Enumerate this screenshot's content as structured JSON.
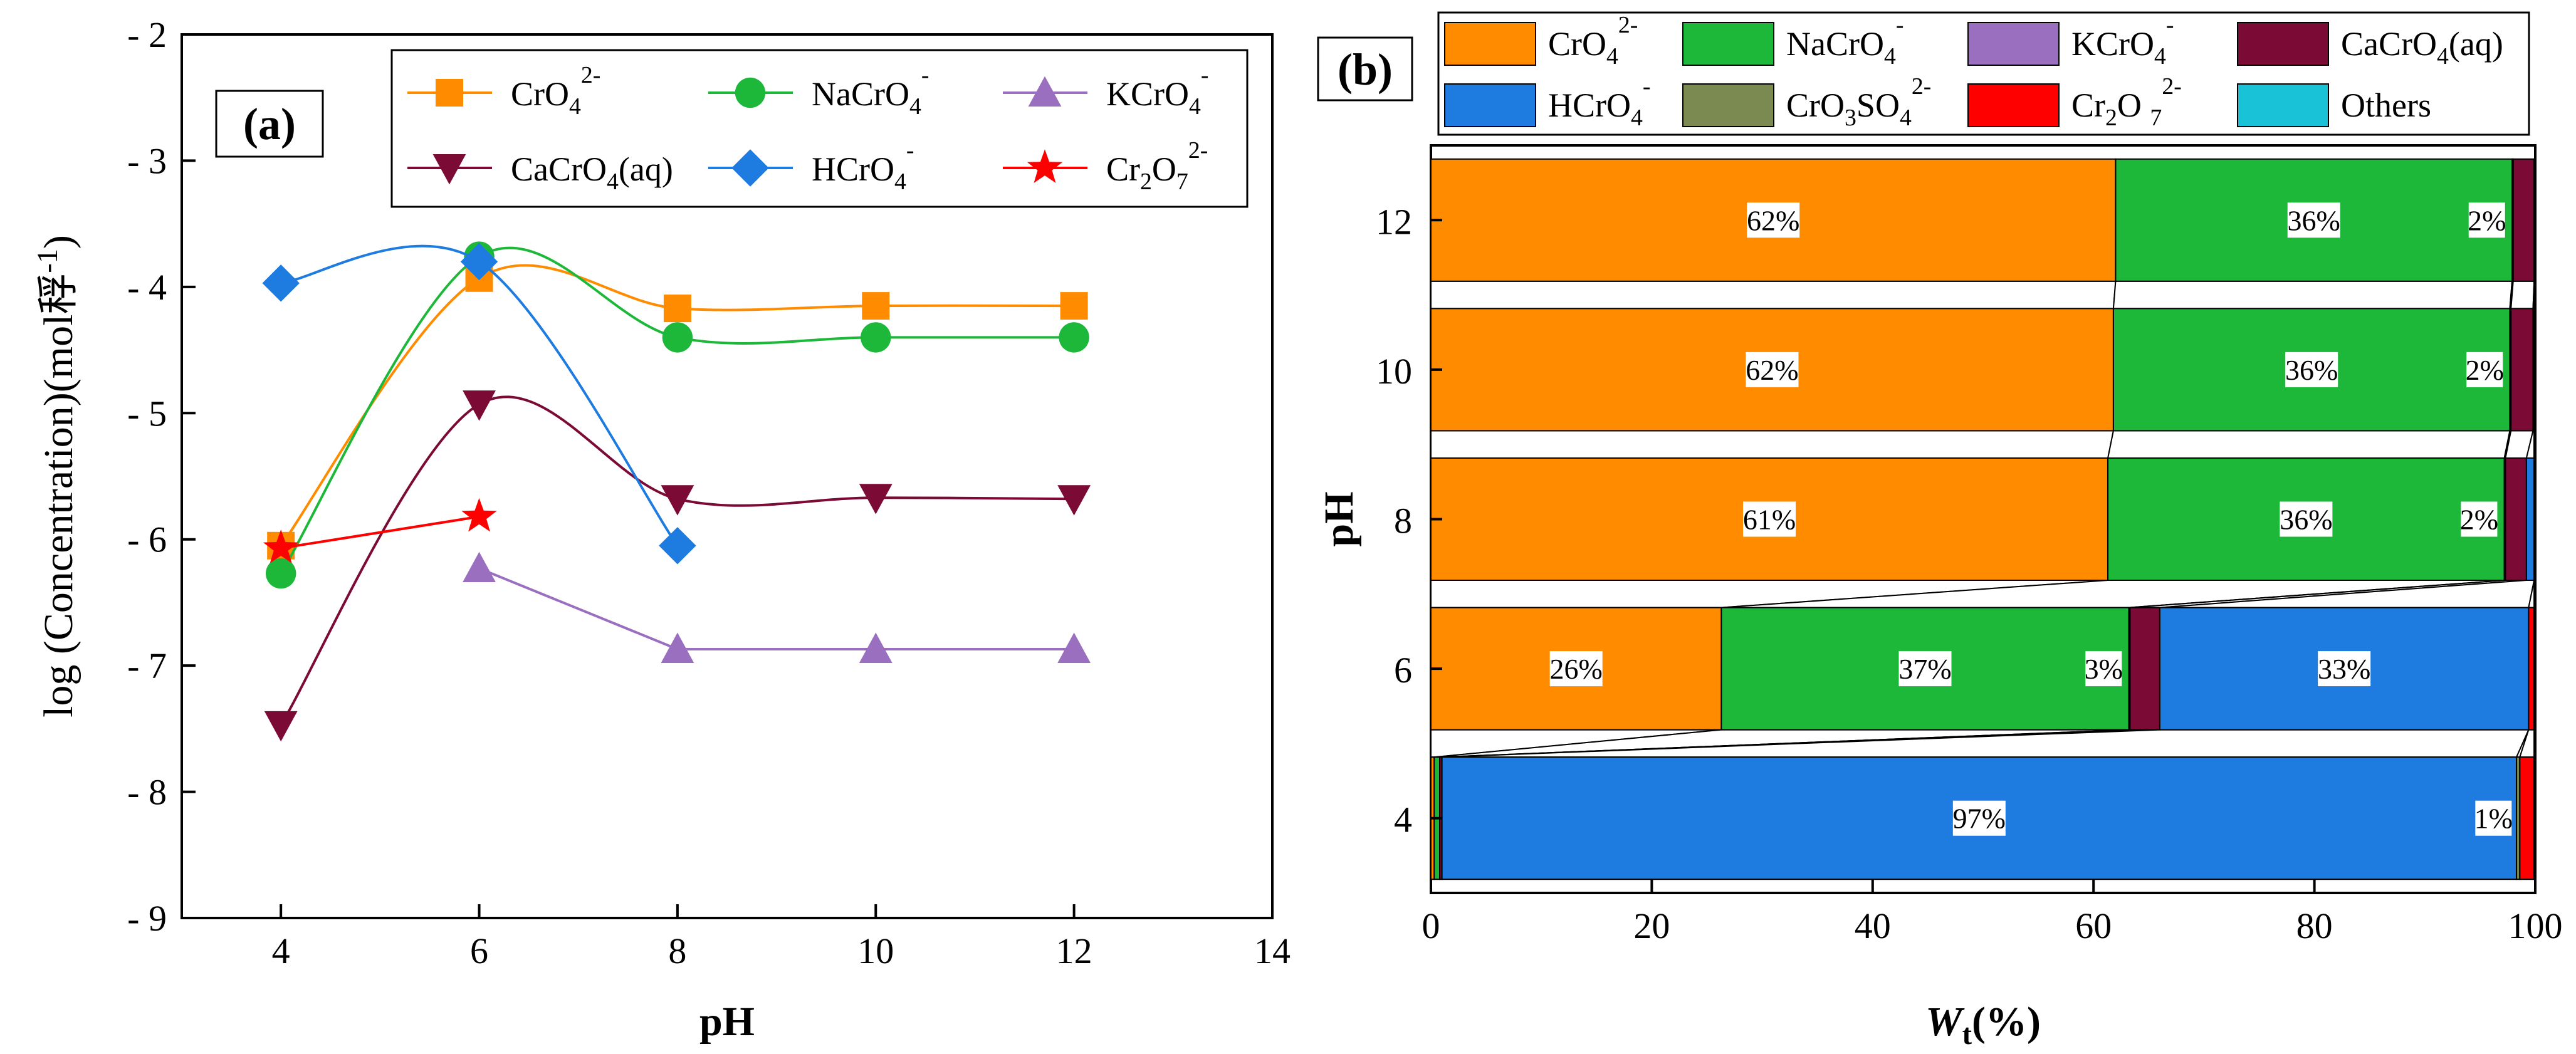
{
  "chart_data": [
    {
      "panel": "(a)",
      "type": "line",
      "xlabel": "pH",
      "ylabel": "log (Concentration)(mol稃",
      "ylabel_unit_sup": "-1",
      "ylabel_close": ")",
      "xlim": [
        3,
        14
      ],
      "ylim": [
        -9,
        -2
      ],
      "xticks": [
        4,
        6,
        8,
        10,
        12,
        14
      ],
      "yticks": [
        -9,
        -8,
        -7,
        -6,
        -5,
        -4,
        -3,
        -2
      ],
      "ytick_labels": [
        "- 9",
        "- 8",
        "- 7",
        "- 6",
        "- 5",
        "- 4",
        "- 3",
        "- 2"
      ],
      "series": [
        {
          "name": "CrO4 2-",
          "label": [
            "CrO",
            "4",
            "2-",
            ""
          ],
          "color": "#FF8C00",
          "marker": "square",
          "x": [
            4,
            6,
            8,
            10,
            12
          ],
          "y": [
            -6.05,
            -3.93,
            -4.17,
            -4.15,
            -4.15
          ]
        },
        {
          "name": "NaCrO4 -",
          "label": [
            "NaCrO",
            "4",
            "-",
            ""
          ],
          "color": "#1DB83A",
          "marker": "circle",
          "x": [
            4,
            6,
            8,
            10,
            12
          ],
          "y": [
            -6.27,
            -3.76,
            -4.4,
            -4.4,
            -4.4
          ]
        },
        {
          "name": "KCrO4 -",
          "label": [
            "KCrO",
            "4",
            "-",
            ""
          ],
          "color": "#9B6FBF",
          "marker": "triangle-up",
          "x": [
            6,
            8,
            10,
            12
          ],
          "y": [
            -6.23,
            -6.87,
            -6.87,
            -6.87
          ]
        },
        {
          "name": "CaCrO4(aq)",
          "label": [
            "CaCrO",
            "4",
            "",
            "(aq)"
          ],
          "color": "#7B0A35",
          "marker": "triangle-down",
          "x": [
            4,
            6,
            8,
            10,
            12
          ],
          "y": [
            -7.47,
            -4.93,
            -5.68,
            -5.67,
            -5.68
          ]
        },
        {
          "name": "HCrO4 -",
          "label": [
            "HCrO",
            "4",
            "-",
            ""
          ],
          "color": "#1E7BE0",
          "marker": "diamond",
          "x": [
            4,
            6,
            8
          ],
          "y": [
            -3.97,
            -3.8,
            -6.05
          ]
        },
        {
          "name": "Cr2O7 2-",
          "label": [
            "Cr",
            "2",
            "",
            "O"
          ],
          "label_tail": [
            "7",
            "2-"
          ],
          "color": "#FF0000",
          "marker": "star",
          "x": [
            4,
            6
          ],
          "y": [
            -6.07,
            -5.82
          ]
        }
      ]
    },
    {
      "panel": "(b)",
      "type": "bar",
      "orientation": "horizontal-stacked",
      "xlabel": "W",
      "xlabel_sub": "t",
      "xlabel_tail": "(%)",
      "ylabel": "pH",
      "xlim": [
        0,
        100
      ],
      "xticks": [
        0,
        20,
        40,
        60,
        80,
        100
      ],
      "categories": [
        "4",
        "6",
        "8",
        "10",
        "12"
      ],
      "legend": [
        {
          "name": "CrO4 2-",
          "label": [
            "CrO",
            "4",
            "2-",
            ""
          ],
          "color": "#FF8C00"
        },
        {
          "name": "NaCrO4 -",
          "label": [
            "NaCrO",
            "4",
            "-",
            ""
          ],
          "color": "#1DB83A"
        },
        {
          "name": "KCrO4 -",
          "label": [
            "KCrO",
            "4",
            "-",
            ""
          ],
          "color": "#9B6FBF"
        },
        {
          "name": "CaCrO4(aq)",
          "label": [
            "CaCrO",
            "4",
            "",
            "(aq)"
          ],
          "color": "#7B0A35"
        },
        {
          "name": "HCrO4 -",
          "label": [
            "HCrO",
            "4",
            "-",
            ""
          ],
          "color": "#1E7BE0"
        },
        {
          "name": "CrO3SO4 2-",
          "label": [
            "CrO",
            "3",
            "",
            "SO"
          ],
          "label_tail": [
            "4",
            "2-"
          ],
          "color": "#7A8A50"
        },
        {
          "name": "Cr2O7 2-",
          "label": [
            "Cr",
            "2",
            "",
            "O "
          ],
          "label_tail": [
            "7",
            "2-"
          ],
          "color": "#FF0000"
        },
        {
          "name": "Others",
          "label": [
            "Others",
            "",
            "",
            ""
          ],
          "color": "#19C2D6"
        }
      ],
      "series": [
        {
          "name": "CrO4 2-",
          "values": [
            0.3,
            26.3,
            61.3,
            61.8,
            62.0
          ]
        },
        {
          "name": "NaCrO4 -",
          "values": [
            0.5,
            36.9,
            35.9,
            35.9,
            35.9
          ]
        },
        {
          "name": "KCrO4 -",
          "values": [
            0,
            0.1,
            0.1,
            0.1,
            0.1
          ]
        },
        {
          "name": "CaCrO4(aq)",
          "values": [
            0.2,
            2.7,
            1.9,
            2.0,
            1.9
          ]
        },
        {
          "name": "HCrO4 -",
          "values": [
            97.3,
            33.4,
            0.7,
            0.1,
            0.0
          ]
        },
        {
          "name": "CrO3SO4 2-",
          "values": [
            0.3,
            0,
            0,
            0,
            0
          ]
        },
        {
          "name": "Cr2O7 2-",
          "values": [
            1.3,
            0.5,
            0,
            0,
            0
          ]
        },
        {
          "name": "Others",
          "values": [
            0.1,
            0.1,
            0.1,
            0.1,
            0.1
          ]
        }
      ],
      "data_labels": [
        {
          "category": "4",
          "series": "HCrO4 -",
          "text": "97%"
        },
        {
          "category": "4",
          "series": "Cr2O7 2-",
          "text": "1%"
        },
        {
          "category": "6",
          "series": "CrO4 2-",
          "text": "26%"
        },
        {
          "category": "6",
          "series": "NaCrO4 -",
          "text": "37%"
        },
        {
          "category": "6",
          "series": "CaCrO4(aq)",
          "text": "3%"
        },
        {
          "category": "6",
          "series": "HCrO4 -",
          "text": "33%"
        },
        {
          "category": "8",
          "series": "CrO4 2-",
          "text": "61%"
        },
        {
          "category": "8",
          "series": "NaCrO4 -",
          "text": "36%"
        },
        {
          "category": "8",
          "series": "CaCrO4(aq)",
          "text": "2%"
        },
        {
          "category": "10",
          "series": "CrO4 2-",
          "text": "62%"
        },
        {
          "category": "10",
          "series": "NaCrO4 -",
          "text": "36%"
        },
        {
          "category": "10",
          "series": "CaCrO4(aq)",
          "text": "2%"
        },
        {
          "category": "12",
          "series": "CrO4 2-",
          "text": "62%"
        },
        {
          "category": "12",
          "series": "NaCrO4 -",
          "text": "36%"
        },
        {
          "category": "12",
          "series": "CaCrO4(aq)",
          "text": "2%"
        }
      ]
    }
  ]
}
